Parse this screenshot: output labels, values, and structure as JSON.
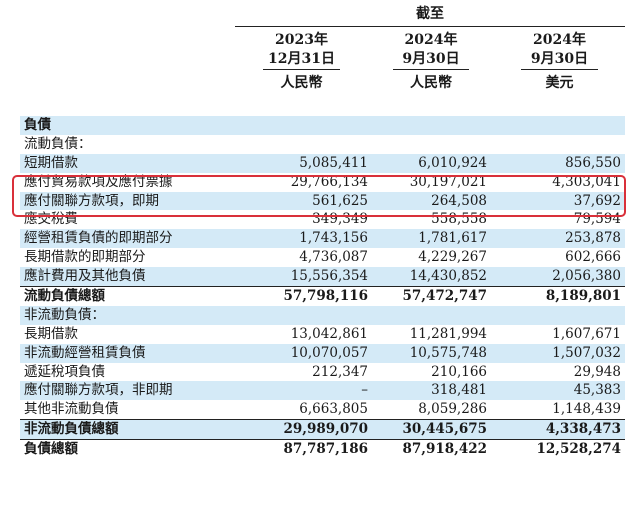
{
  "header": {
    "group_label": "截至",
    "columns": [
      {
        "line1": "2023年",
        "line2": "12月31日",
        "currency": "人民幣"
      },
      {
        "line1": "2024年",
        "line2": "9月30日",
        "currency": "人民幣"
      },
      {
        "line1": "2024年",
        "line2": "9月30日",
        "currency": "美元"
      }
    ]
  },
  "rows": [
    {
      "label": "負債",
      "values": [
        "",
        "",
        ""
      ],
      "bold": true,
      "shaded": true
    },
    {
      "label": "流動負債：",
      "values": [
        "",
        "",
        ""
      ],
      "bold": false,
      "shaded": false
    },
    {
      "label": "短期借款",
      "values": [
        "5,085,411",
        "6,010,924",
        "856,550"
      ],
      "bold": false,
      "shaded": true
    },
    {
      "label": "應付貿易款項及應付票據",
      "values": [
        "29,766,134",
        "30,197,021",
        "4,303,041"
      ],
      "bold": false,
      "shaded": false
    },
    {
      "label": "應付關聯方款項，即期",
      "values": [
        "561,625",
        "264,508",
        "37,692"
      ],
      "bold": false,
      "shaded": true
    },
    {
      "label": "應交稅費",
      "values": [
        "349,349",
        "558,558",
        "79,594"
      ],
      "bold": false,
      "shaded": false
    },
    {
      "label": "經營租賃負債的即期部分",
      "values": [
        "1,743,156",
        "1,781,617",
        "253,878"
      ],
      "bold": false,
      "shaded": true
    },
    {
      "label": "長期借款的即期部分",
      "values": [
        "4,736,087",
        "4,229,267",
        "602,666"
      ],
      "bold": false,
      "shaded": false
    },
    {
      "label": "應計費用及其他負債",
      "values": [
        "15,556,354",
        "14,430,852",
        "2,056,380"
      ],
      "bold": false,
      "shaded": true
    },
    {
      "label": "流動負債總額",
      "values": [
        "57,798,116",
        "57,472,747",
        "8,189,801"
      ],
      "bold": true,
      "shaded": false,
      "total": true
    },
    {
      "label": "非流動負債：",
      "values": [
        "",
        "",
        ""
      ],
      "bold": false,
      "shaded": true
    },
    {
      "label": "長期借款",
      "values": [
        "13,042,861",
        "11,281,994",
        "1,607,671"
      ],
      "bold": false,
      "shaded": false
    },
    {
      "label": "非流動經營租賃負債",
      "values": [
        "10,070,057",
        "10,575,748",
        "1,507,032"
      ],
      "bold": false,
      "shaded": true
    },
    {
      "label": "遞延稅項負債",
      "values": [
        "212,347",
        "210,166",
        "29,948"
      ],
      "bold": false,
      "shaded": false
    },
    {
      "label": "應付關聯方款項，非即期",
      "values": [
        "–",
        "318,481",
        "45,383"
      ],
      "bold": false,
      "shaded": true
    },
    {
      "label": "其他非流動負債",
      "values": [
        "6,663,805",
        "8,059,286",
        "1,148,439"
      ],
      "bold": false,
      "shaded": false
    },
    {
      "label": "非流動負債總額",
      "values": [
        "29,989,070",
        "30,445,675",
        "4,338,473"
      ],
      "bold": true,
      "shaded": true,
      "total": true
    },
    {
      "label": "負債總額",
      "values": [
        "87,787,186",
        "87,918,422",
        "12,528,274"
      ],
      "bold": true,
      "shaded": false,
      "total": true
    }
  ],
  "annotation": {
    "color": "#d9303a"
  }
}
